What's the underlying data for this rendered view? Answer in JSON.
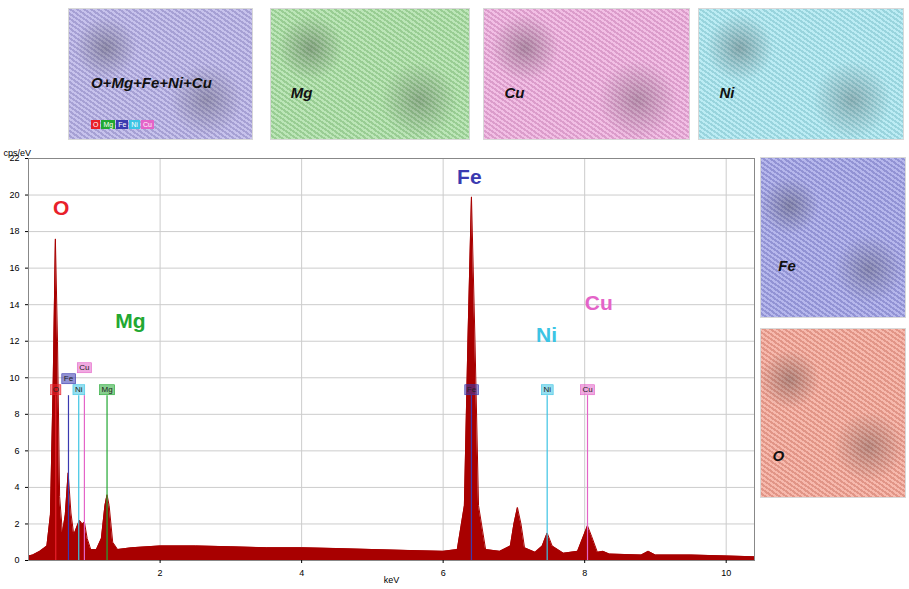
{
  "chart_data": {
    "type": "area",
    "x_label": "keV",
    "y_label": "cps/eV",
    "xlim": [
      0.14,
      10.4
    ],
    "xticks": [
      2,
      4,
      6,
      8,
      10
    ],
    "ylim": [
      0,
      22
    ],
    "yticks": [
      0,
      2,
      4,
      6,
      8,
      10,
      12,
      14,
      16,
      18,
      20,
      22
    ],
    "grid": true,
    "color": "#a80000",
    "x": [
      0.14,
      0.2,
      0.3,
      0.4,
      0.45,
      0.49,
      0.52,
      0.55,
      0.58,
      0.62,
      0.66,
      0.7,
      0.74,
      0.78,
      0.82,
      0.86,
      0.9,
      0.93,
      0.97,
      1.02,
      1.1,
      1.17,
      1.22,
      1.25,
      1.28,
      1.33,
      1.4,
      1.6,
      2.0,
      2.5,
      3.0,
      3.5,
      4.0,
      4.5,
      5.0,
      5.5,
      6.0,
      6.2,
      6.3,
      6.35,
      6.4,
      6.45,
      6.5,
      6.6,
      6.8,
      6.95,
      7.0,
      7.05,
      7.1,
      7.15,
      7.3,
      7.4,
      7.47,
      7.54,
      7.7,
      7.9,
      7.98,
      8.04,
      8.1,
      8.18,
      8.26,
      8.35,
      8.8,
      8.9,
      9.0,
      9.5,
      10.0,
      10.4
    ],
    "values": [
      0.25,
      0.3,
      0.5,
      0.8,
      2.5,
      10,
      17.6,
      12,
      3.5,
      1.5,
      2.5,
      4.8,
      2.6,
      1.4,
      1.8,
      2.2,
      2.0,
      2.1,
      1.2,
      0.6,
      0.6,
      1.2,
      3.0,
      3.6,
      3.0,
      1.0,
      0.6,
      0.7,
      0.8,
      0.8,
      0.75,
      0.7,
      0.7,
      0.65,
      0.6,
      0.55,
      0.5,
      0.6,
      3,
      12,
      19.9,
      12,
      3,
      0.6,
      0.5,
      0.8,
      2,
      2.9,
      2,
      0.7,
      0.45,
      0.8,
      1.5,
      0.8,
      0.4,
      0.5,
      1.3,
      1.9,
      1.3,
      0.45,
      0.5,
      0.35,
      0.3,
      0.5,
      0.3,
      0.3,
      0.25,
      0.2
    ],
    "elements": [
      {
        "name": "O",
        "color": "#e8202a",
        "lines": [
          0.525
        ],
        "label": {
          "x": 0.6,
          "y": 19.3
        }
      },
      {
        "name": "Mg",
        "color": "#22a832",
        "lines": [
          1.25
        ],
        "label": {
          "x": 1.58,
          "y": 13.1
        }
      },
      {
        "name": "Fe",
        "color": "#3a3ab0",
        "lines": [
          0.705,
          6.4
        ],
        "label": {
          "x": 6.37,
          "y": 21
        }
      },
      {
        "name": "Ni",
        "color": "#3cc4e4",
        "lines": [
          0.85,
          7.47
        ],
        "label": {
          "x": 7.46,
          "y": 12.3
        }
      },
      {
        "name": "Cu",
        "color": "#e464c8",
        "lines": [
          0.93,
          8.04
        ],
        "label": {
          "x": 8.2,
          "y": 14.1
        }
      }
    ]
  },
  "maps": [
    {
      "label": "O+Mg+Fe+Ni+Cu",
      "color": "#b4aee6",
      "legend": [
        "O",
        "Mg",
        "Fe",
        "Ni",
        "Cu"
      ]
    },
    {
      "label": "Mg",
      "color": "#a6dea0"
    },
    {
      "label": "Cu",
      "color": "#eeaadc"
    },
    {
      "label": "Ni",
      "color": "#a6e6f0"
    },
    {
      "label": "Fe",
      "color": "#9e9fe6"
    },
    {
      "label": "O",
      "color": "#f4a292"
    }
  ]
}
